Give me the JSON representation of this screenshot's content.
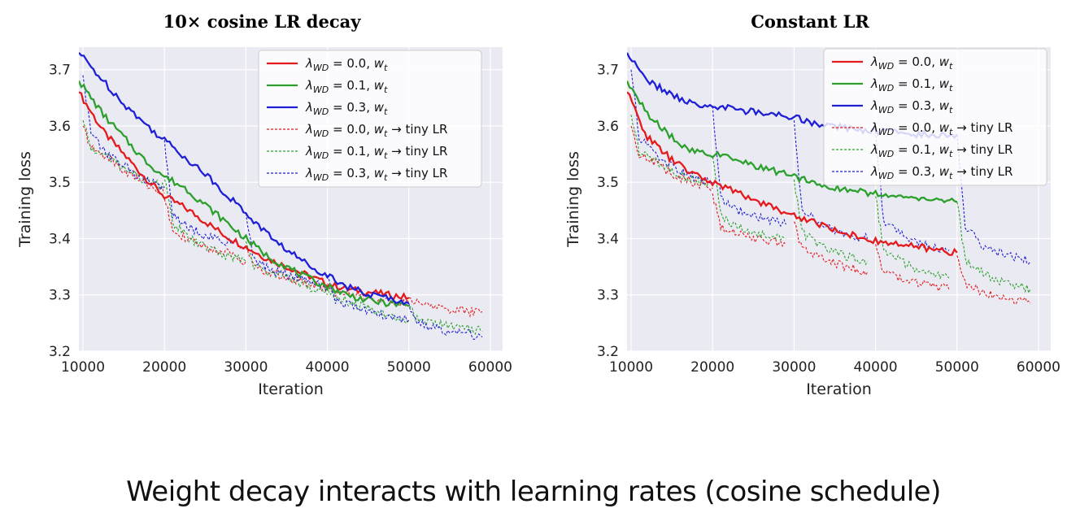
{
  "caption": "Weight decay interacts with learning rates (cosine schedule)",
  "chart_data": [
    {
      "type": "line",
      "title": "10× cosine LR decay",
      "xlabel": "Iteration",
      "ylabel": "Training loss",
      "xlim": [
        9500,
        61500
      ],
      "ylim": [
        3.2,
        3.74
      ],
      "xticks": [
        10000,
        20000,
        30000,
        40000,
        50000,
        60000
      ],
      "xtick_labels": [
        "10000",
        "20000",
        "30000",
        "40000",
        "50000",
        "60000"
      ],
      "yticks": [
        3.2,
        3.3,
        3.4,
        3.5,
        3.6,
        3.7
      ],
      "ytick_labels": [
        "3.2",
        "3.3",
        "3.4",
        "3.5",
        "3.6",
        "3.7"
      ],
      "grid": true,
      "legend": "top-right",
      "series": [
        {
          "name": "λWD = 0.0, wt",
          "color": "#e41a1c",
          "style": "solid",
          "x": [
            9500,
            12500,
            15000,
            17500,
            20000,
            22500,
            25000,
            27500,
            30000,
            32500,
            35000,
            37500,
            40000,
            42500,
            45000,
            47500,
            50000
          ],
          "y": [
            3.66,
            3.59,
            3.55,
            3.51,
            3.475,
            3.455,
            3.43,
            3.405,
            3.385,
            3.365,
            3.35,
            3.335,
            3.32,
            3.31,
            3.305,
            3.3,
            3.295
          ]
        },
        {
          "name": "λWD = 0.1, wt",
          "color": "#2ca02c",
          "style": "solid",
          "x": [
            9500,
            12500,
            15000,
            17500,
            20000,
            22500,
            25000,
            27500,
            30000,
            32500,
            35000,
            37500,
            40000,
            42500,
            45000,
            47500,
            50000
          ],
          "y": [
            3.68,
            3.62,
            3.58,
            3.54,
            3.51,
            3.49,
            3.46,
            3.43,
            3.4,
            3.37,
            3.35,
            3.33,
            3.315,
            3.3,
            3.29,
            3.285,
            3.28
          ]
        },
        {
          "name": "λWD = 0.3, wt",
          "color": "#1f1fd6",
          "style": "solid",
          "x": [
            9500,
            12500,
            15000,
            17500,
            20000,
            22500,
            25000,
            27500,
            30000,
            32500,
            35000,
            37500,
            40000,
            42500,
            45000,
            47500,
            50000
          ],
          "y": [
            3.73,
            3.68,
            3.64,
            3.605,
            3.575,
            3.545,
            3.515,
            3.48,
            3.445,
            3.41,
            3.38,
            3.355,
            3.335,
            3.315,
            3.3,
            3.295,
            3.285
          ]
        },
        {
          "name": "λWD = 0.0, wt → tiny LR",
          "color": "#e41a1c",
          "style": "dashed",
          "segments": [
            {
              "x": [
                10000,
                11000,
                13000,
                15000,
                17500,
                20000
              ],
              "y": [
                3.6,
                3.56,
                3.545,
                3.52,
                3.5,
                3.48
              ]
            },
            {
              "x": [
                20000,
                21000,
                23000,
                25000,
                27500,
                30000
              ],
              "y": [
                3.47,
                3.42,
                3.395,
                3.385,
                3.375,
                3.36
              ]
            },
            {
              "x": [
                30000,
                31000,
                33000,
                35000,
                37500,
                40000
              ],
              "y": [
                3.385,
                3.35,
                3.34,
                3.33,
                3.32,
                3.31
              ]
            },
            {
              "x": [
                40000,
                41000,
                43000,
                45000,
                47500,
                50000
              ],
              "y": [
                3.32,
                3.305,
                3.3,
                3.295,
                3.29,
                3.285
              ]
            },
            {
              "x": [
                50000,
                51000,
                53000,
                55000,
                57500,
                59000
              ],
              "y": [
                3.295,
                3.285,
                3.28,
                3.275,
                3.27,
                3.27
              ]
            }
          ]
        },
        {
          "name": "λWD = 0.1, wt → tiny LR",
          "color": "#2ca02c",
          "style": "dashed",
          "segments": [
            {
              "x": [
                10000,
                11000,
                13000,
                15000,
                17500,
                20000
              ],
              "y": [
                3.61,
                3.56,
                3.545,
                3.525,
                3.505,
                3.49
              ]
            },
            {
              "x": [
                20000,
                21000,
                23000,
                25000,
                27500,
                30000
              ],
              "y": [
                3.505,
                3.43,
                3.4,
                3.385,
                3.37,
                3.36
              ]
            },
            {
              "x": [
                30000,
                31000,
                33000,
                35000,
                37500,
                40000
              ],
              "y": [
                3.395,
                3.35,
                3.34,
                3.33,
                3.315,
                3.3
              ]
            },
            {
              "x": [
                40000,
                41000,
                43000,
                45000,
                47500,
                50000
              ],
              "y": [
                3.315,
                3.295,
                3.285,
                3.275,
                3.265,
                3.255
              ]
            },
            {
              "x": [
                50000,
                51000,
                53000,
                55000,
                57500,
                59000
              ],
              "y": [
                3.28,
                3.255,
                3.25,
                3.245,
                3.24,
                3.235
              ]
            }
          ]
        },
        {
          "name": "λWD = 0.3, wt → tiny LR",
          "color": "#1f1fd6",
          "style": "dashed",
          "segments": [
            {
              "x": [
                10000,
                11000,
                13000,
                15000,
                17500,
                20000
              ],
              "y": [
                3.69,
                3.585,
                3.55,
                3.53,
                3.505,
                3.49
              ]
            },
            {
              "x": [
                20000,
                21000,
                23000,
                25000,
                27500,
                30000
              ],
              "y": [
                3.575,
                3.44,
                3.42,
                3.405,
                3.395,
                3.38
              ]
            },
            {
              "x": [
                30000,
                31000,
                33000,
                35000,
                37500,
                40000
              ],
              "y": [
                3.445,
                3.36,
                3.345,
                3.335,
                3.325,
                3.315
              ]
            },
            {
              "x": [
                40000,
                41000,
                43000,
                45000,
                47500,
                50000
              ],
              "y": [
                3.335,
                3.29,
                3.28,
                3.27,
                3.26,
                3.255
              ]
            },
            {
              "x": [
                50000,
                51000,
                53000,
                55000,
                57500,
                59000
              ],
              "y": [
                3.285,
                3.25,
                3.24,
                3.235,
                3.23,
                3.225
              ]
            }
          ]
        }
      ]
    },
    {
      "type": "line",
      "title": "Constant LR",
      "xlabel": "Iteration",
      "ylabel": "Training loss",
      "xlim": [
        9500,
        61500
      ],
      "ylim": [
        3.2,
        3.74
      ],
      "xticks": [
        10000,
        20000,
        30000,
        40000,
        50000,
        60000
      ],
      "xtick_labels": [
        "10000",
        "20000",
        "30000",
        "40000",
        "50000",
        "60000"
      ],
      "yticks": [
        3.2,
        3.3,
        3.4,
        3.5,
        3.6,
        3.7
      ],
      "ytick_labels": [
        "3.2",
        "3.3",
        "3.4",
        "3.5",
        "3.6",
        "3.7"
      ],
      "grid": true,
      "legend": "top-right",
      "series": [
        {
          "name": "λWD = 0.0, wt",
          "color": "#e41a1c",
          "style": "solid",
          "x": [
            9500,
            12000,
            15000,
            17500,
            20000,
            22500,
            25000,
            27500,
            30000,
            32500,
            35000,
            37500,
            40000,
            42500,
            45000,
            47500,
            50000
          ],
          "y": [
            3.66,
            3.58,
            3.54,
            3.515,
            3.5,
            3.485,
            3.47,
            3.455,
            3.44,
            3.43,
            3.415,
            3.405,
            3.395,
            3.39,
            3.385,
            3.38,
            3.375
          ]
        },
        {
          "name": "λWD = 0.1, wt",
          "color": "#2ca02c",
          "style": "solid",
          "x": [
            9500,
            12000,
            15000,
            17500,
            20000,
            22500,
            25000,
            27500,
            30000,
            32500,
            35000,
            37500,
            40000,
            42500,
            45000,
            47500,
            50000
          ],
          "y": [
            3.68,
            3.62,
            3.58,
            3.555,
            3.55,
            3.54,
            3.53,
            3.52,
            3.51,
            3.5,
            3.49,
            3.485,
            3.48,
            3.475,
            3.47,
            3.47,
            3.465
          ]
        },
        {
          "name": "λWD = 0.3, wt",
          "color": "#1f1fd6",
          "style": "solid",
          "x": [
            9500,
            12000,
            15000,
            17500,
            20000,
            22500,
            25000,
            27500,
            30000,
            32500,
            35000,
            37500,
            40000,
            42500,
            45000,
            47500,
            50000
          ],
          "y": [
            3.73,
            3.68,
            3.655,
            3.64,
            3.635,
            3.63,
            3.625,
            3.62,
            3.615,
            3.605,
            3.6,
            3.595,
            3.59,
            3.59,
            3.585,
            3.585,
            3.585
          ]
        },
        {
          "name": "λWD = 0.0, wt → tiny LR",
          "color": "#e41a1c",
          "style": "dashed",
          "segments": [
            {
              "x": [
                10000,
                11000,
                13000,
                15000,
                17500,
                20000
              ],
              "y": [
                3.6,
                3.55,
                3.535,
                3.515,
                3.5,
                3.49
              ]
            },
            {
              "x": [
                20000,
                21000,
                23000,
                25000,
                27500,
                29000
              ],
              "y": [
                3.48,
                3.42,
                3.41,
                3.4,
                3.395,
                3.39
              ]
            },
            {
              "x": [
                30000,
                31000,
                33000,
                35000,
                37500,
                39000
              ],
              "y": [
                3.43,
                3.38,
                3.365,
                3.355,
                3.345,
                3.34
              ]
            },
            {
              "x": [
                40000,
                41000,
                43000,
                45000,
                47500,
                49000
              ],
              "y": [
                3.39,
                3.34,
                3.33,
                3.32,
                3.315,
                3.31
              ]
            },
            {
              "x": [
                50000,
                51000,
                53000,
                55000,
                57500,
                59000
              ],
              "y": [
                3.37,
                3.32,
                3.305,
                3.295,
                3.29,
                3.285
              ]
            }
          ]
        },
        {
          "name": "λWD = 0.1, wt → tiny LR",
          "color": "#2ca02c",
          "style": "dashed",
          "segments": [
            {
              "x": [
                10000,
                11000,
                13000,
                15000,
                17500,
                20000
              ],
              "y": [
                3.62,
                3.555,
                3.54,
                3.52,
                3.505,
                3.495
              ]
            },
            {
              "x": [
                20000,
                21000,
                23000,
                25000,
                27500,
                29000
              ],
              "y": [
                3.545,
                3.44,
                3.42,
                3.41,
                3.405,
                3.4
              ]
            },
            {
              "x": [
                30000,
                31000,
                33000,
                35000,
                37500,
                39000
              ],
              "y": [
                3.505,
                3.41,
                3.39,
                3.375,
                3.365,
                3.36
              ]
            },
            {
              "x": [
                40000,
                41000,
                43000,
                45000,
                47500,
                49000
              ],
              "y": [
                3.475,
                3.38,
                3.36,
                3.345,
                3.335,
                3.33
              ]
            },
            {
              "x": [
                50000,
                51000,
                53000,
                55000,
                57500,
                59000
              ],
              "y": [
                3.465,
                3.36,
                3.34,
                3.325,
                3.315,
                3.31
              ]
            }
          ]
        },
        {
          "name": "λWD = 0.3, wt → tiny LR",
          "color": "#1f1fd6",
          "style": "dashed",
          "segments": [
            {
              "x": [
                10000,
                11000,
                13000,
                15000,
                17500,
                20000
              ],
              "y": [
                3.7,
                3.58,
                3.55,
                3.53,
                3.51,
                3.5
              ]
            },
            {
              "x": [
                20000,
                21000,
                23000,
                25000,
                27500,
                29000
              ],
              "y": [
                3.635,
                3.47,
                3.45,
                3.44,
                3.43,
                3.425
              ]
            },
            {
              "x": [
                30000,
                31000,
                33000,
                35000,
                37500,
                39000
              ],
              "y": [
                3.61,
                3.45,
                3.43,
                3.415,
                3.405,
                3.4
              ]
            },
            {
              "x": [
                40000,
                41000,
                43000,
                45000,
                47500,
                49000
              ],
              "y": [
                3.59,
                3.43,
                3.41,
                3.395,
                3.385,
                3.38
              ]
            },
            {
              "x": [
                50000,
                51000,
                53000,
                55000,
                57500,
                59000
              ],
              "y": [
                3.585,
                3.42,
                3.39,
                3.375,
                3.365,
                3.36
              ]
            }
          ]
        }
      ]
    }
  ]
}
